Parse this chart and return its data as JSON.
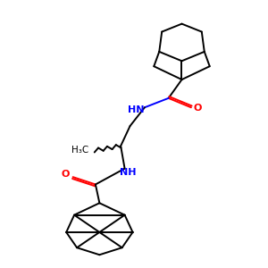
{
  "background": "#ffffff",
  "line_color": "#000000",
  "N_color": "#0000ff",
  "O_color": "#ff0000",
  "lw": 1.4,
  "figsize": [
    3.0,
    3.0
  ],
  "dpi": 100,
  "xlim": [
    0,
    10
  ],
  "ylim": [
    0,
    10
  ]
}
